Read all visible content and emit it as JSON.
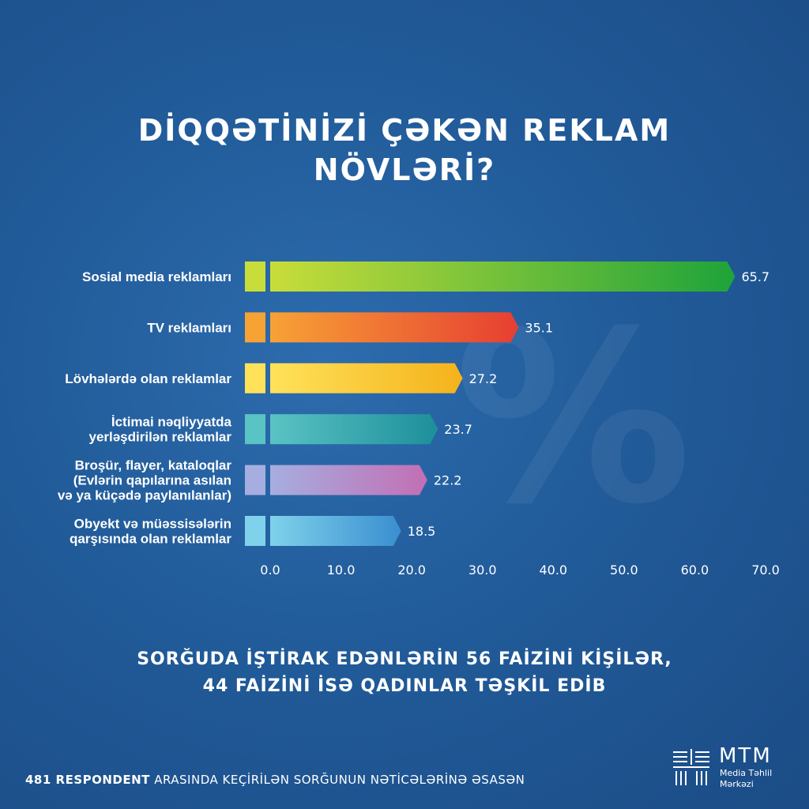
{
  "title": {
    "line1": "DİQQƏTİNİZİ ÇƏKƏN REKLAM",
    "line2": "NÖVLƏRİ?"
  },
  "watermark": "%",
  "chart_data": {
    "type": "bar",
    "orientation": "horizontal",
    "categories": [
      [
        "Sosial media reklamları"
      ],
      [
        "TV reklamları"
      ],
      [
        "Lövhələrdə olan reklamlar"
      ],
      [
        "İctimai nəqliyyatda",
        "yerləşdirilən reklamlar"
      ],
      [
        "Broşür, flayer, kataloqlar",
        "(Evlərin qapılarına asılan",
        "və ya küçədə paylanılanlar)"
      ],
      [
        "Obyekt və müəssisələrin",
        "qarşısında olan reklamlar"
      ]
    ],
    "values": [
      65.7,
      35.1,
      27.2,
      23.7,
      22.2,
      18.5
    ],
    "value_labels": [
      "65.7",
      "35.1",
      "27.2",
      "23.7",
      "22.2",
      "18.5"
    ],
    "colors": [
      [
        "#c8dd3a",
        "#1ea33a"
      ],
      [
        "#f7a235",
        "#e63e32"
      ],
      [
        "#ffe25a",
        "#f4b21b"
      ],
      [
        "#5ac3c4",
        "#1d8f9a"
      ],
      [
        "#a6aee0",
        "#c26fb4"
      ],
      [
        "#7fd2ea",
        "#3a8ed0"
      ]
    ],
    "xlim": [
      0,
      70
    ],
    "xticks": [
      "0.0",
      "10.0",
      "20.0",
      "30.0",
      "40.0",
      "50.0",
      "60.0",
      "70.0"
    ],
    "grid": false,
    "xlabel": "",
    "ylabel": ""
  },
  "note": {
    "line1": "SORĞUDA İŞTİRAK EDƏNLƏRİN 56 FAİZİNİ KİŞİLƏR,",
    "line2": "44 FAİZİNİ İSƏ QADINLAR TƏŞKİL EDİB"
  },
  "footer": {
    "bold": "481 RESPONDENT",
    "rest": " ARASINDA KEÇİRİLƏN SORĞUNUN NƏTİCƏLƏRİNƏ ƏSASƏN"
  },
  "logo": {
    "brand": "MTM",
    "sub1": "Media Təhlil",
    "sub2": "Mərkəzi"
  }
}
